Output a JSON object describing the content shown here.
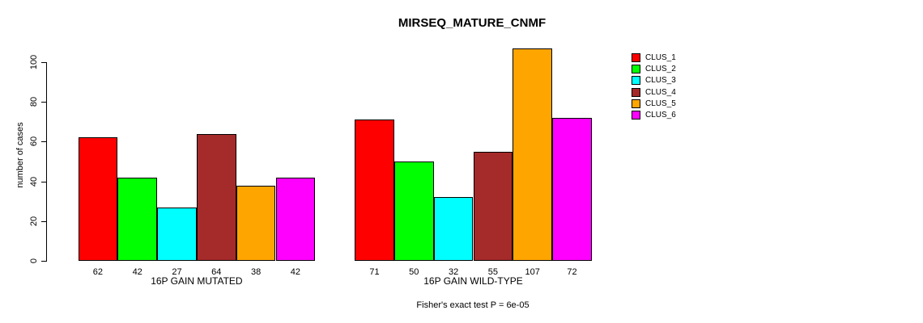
{
  "chart_data": {
    "type": "bar",
    "title": "MIRSEQ_MATURE_CNMF",
    "ylabel": "number of cases",
    "xlabel": "",
    "y_ticks": [
      0,
      20,
      40,
      60,
      80,
      100
    ],
    "ylim": [
      0,
      107
    ],
    "grid": false,
    "legend_position": "right",
    "bar_value_labels_shown": true,
    "categories": [
      "16P GAIN MUTATED",
      "16P GAIN WILD-TYPE"
    ],
    "groups": [
      {
        "label": "16P GAIN MUTATED",
        "values": [
          62,
          42,
          27,
          64,
          38,
          42
        ]
      },
      {
        "label": "16P GAIN WILD-TYPE",
        "values": [
          71,
          50,
          32,
          55,
          107,
          72
        ]
      }
    ],
    "series": [
      {
        "name": "CLUS_1",
        "color": "#FF0000"
      },
      {
        "name": "CLUS_2",
        "color": "#00FF00"
      },
      {
        "name": "CLUS_3",
        "color": "#00FFFF"
      },
      {
        "name": "CLUS_4",
        "color": "#A52A2A"
      },
      {
        "name": "CLUS_5",
        "color": "#FFA500"
      },
      {
        "name": "CLUS_6",
        "color": "#FF00FF"
      }
    ],
    "footnote": "Fisher's exact test P = 6e-05"
  }
}
